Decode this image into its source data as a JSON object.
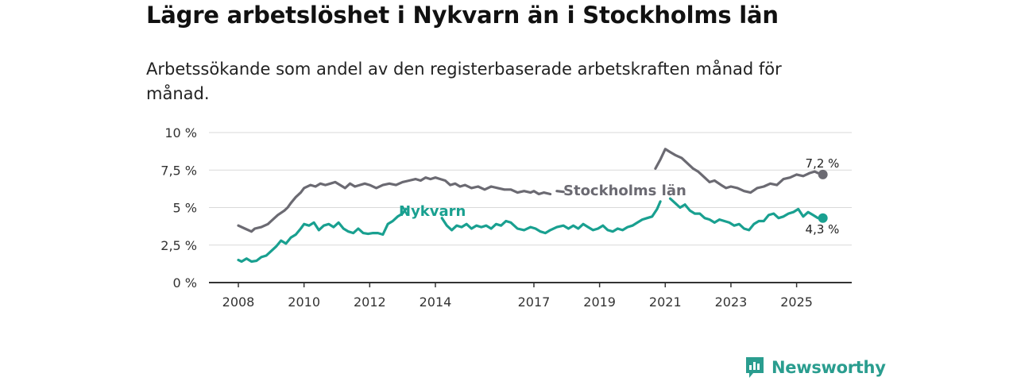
{
  "header": {
    "title": "Lägre arbetslöshet i Nykvarn än i Stockholms län",
    "subtitle": "Arbetssökande som andel av den registerbaserade arbetskraften månad för månad."
  },
  "brand": {
    "name": "Newsworthy",
    "icon": "newsworthy-logo-icon",
    "color": "#2a9d8f"
  },
  "chart_data": {
    "type": "line",
    "title": "Lägre arbetslöshet i Nykvarn än i Stockholms län",
    "subtitle": "Arbetssökande som andel av den registerbaserade arbetskraften månad för månad.",
    "xlabel": "",
    "ylabel": "",
    "xlim": [
      2008.0,
      2026.5
    ],
    "ylim": [
      0,
      10
    ],
    "grid": true,
    "legend": "inline",
    "x_ticks": [
      {
        "value": 2008,
        "label": "2008"
      },
      {
        "value": 2010,
        "label": "2010"
      },
      {
        "value": 2012,
        "label": "2012"
      },
      {
        "value": 2014,
        "label": "2014"
      },
      {
        "value": 2017,
        "label": "2017"
      },
      {
        "value": 2019,
        "label": "2019"
      },
      {
        "value": 2021,
        "label": "2021"
      },
      {
        "value": 2023,
        "label": "2023"
      },
      {
        "value": 2025,
        "label": "2025"
      }
    ],
    "y_ticks": [
      {
        "value": 0,
        "label": "0 %"
      },
      {
        "value": 2.5,
        "label": "2,5 %"
      },
      {
        "value": 5,
        "label": "5 %"
      },
      {
        "value": 7.5,
        "label": "7,5 %"
      },
      {
        "value": 10,
        "label": "10 %"
      }
    ],
    "series": [
      {
        "name": "Stockholms län",
        "color": "#6b6a72",
        "label_x": 2008.0,
        "label_y": 6.0,
        "end_label": "7,2 %",
        "end_value": 7.2,
        "segments": [
          [
            [
              2008.0,
              3.8
            ],
            [
              2008.2,
              3.6
            ],
            [
              2008.4,
              3.4
            ],
            [
              2008.5,
              3.6
            ],
            [
              2008.7,
              3.7
            ],
            [
              2008.9,
              3.9
            ],
            [
              2009.0,
              4.1
            ],
            [
              2009.2,
              4.5
            ],
            [
              2009.4,
              4.8
            ],
            [
              2009.5,
              5.0
            ],
            [
              2009.6,
              5.3
            ],
            [
              2009.75,
              5.7
            ],
            [
              2009.9,
              6.0
            ],
            [
              2010.0,
              6.3
            ],
            [
              2010.2,
              6.5
            ],
            [
              2010.35,
              6.4
            ],
            [
              2010.5,
              6.6
            ],
            [
              2010.65,
              6.5
            ],
            [
              2010.8,
              6.6
            ],
            [
              2010.95,
              6.7
            ],
            [
              2011.1,
              6.5
            ],
            [
              2011.25,
              6.3
            ],
            [
              2011.4,
              6.6
            ],
            [
              2011.55,
              6.4
            ],
            [
              2011.7,
              6.5
            ],
            [
              2011.85,
              6.6
            ],
            [
              2012.0,
              6.5
            ],
            [
              2012.2,
              6.3
            ],
            [
              2012.4,
              6.5
            ],
            [
              2012.6,
              6.6
            ],
            [
              2012.8,
              6.5
            ],
            [
              2013.0,
              6.7
            ],
            [
              2013.2,
              6.8
            ],
            [
              2013.4,
              6.9
            ],
            [
              2013.55,
              6.8
            ],
            [
              2013.7,
              7.0
            ],
            [
              2013.85,
              6.9
            ],
            [
              2014.0,
              7.0
            ],
            [
              2014.15,
              6.9
            ],
            [
              2014.3,
              6.8
            ],
            [
              2014.45,
              6.5
            ],
            [
              2014.6,
              6.6
            ],
            [
              2014.75,
              6.4
            ],
            [
              2014.9,
              6.5
            ],
            [
              2015.1,
              6.3
            ],
            [
              2015.3,
              6.4
            ],
            [
              2015.5,
              6.2
            ],
            [
              2015.7,
              6.4
            ],
            [
              2015.9,
              6.3
            ],
            [
              2016.1,
              6.2
            ],
            [
              2016.3,
              6.2
            ],
            [
              2016.5,
              6.0
            ],
            [
              2016.7,
              6.1
            ],
            [
              2016.9,
              6.0
            ],
            [
              2017.0,
              6.1
            ],
            [
              2017.15,
              5.9
            ],
            [
              2017.3,
              6.0
            ],
            [
              2017.5,
              5.9
            ]
          ],
          [
            [
              2017.7,
              6.1
            ],
            [
              2017.9,
              6.05
            ]
          ],
          [
            [
              2020.7,
              7.6
            ],
            [
              2020.85,
              8.2
            ],
            [
              2021.0,
              8.9
            ],
            [
              2021.15,
              8.7
            ],
            [
              2021.3,
              8.5
            ],
            [
              2021.5,
              8.3
            ],
            [
              2021.7,
              7.9
            ],
            [
              2021.85,
              7.6
            ],
            [
              2022.0,
              7.4
            ],
            [
              2022.2,
              7.0
            ],
            [
              2022.35,
              6.7
            ],
            [
              2022.5,
              6.8
            ],
            [
              2022.7,
              6.5
            ],
            [
              2022.85,
              6.3
            ],
            [
              2023.0,
              6.4
            ],
            [
              2023.2,
              6.3
            ],
            [
              2023.4,
              6.1
            ],
            [
              2023.6,
              6.0
            ],
            [
              2023.8,
              6.3
            ],
            [
              2024.0,
              6.4
            ],
            [
              2024.2,
              6.6
            ],
            [
              2024.4,
              6.5
            ],
            [
              2024.6,
              6.9
            ],
            [
              2024.8,
              7.0
            ],
            [
              2025.0,
              7.2
            ],
            [
              2025.2,
              7.1
            ],
            [
              2025.4,
              7.3
            ],
            [
              2025.55,
              7.4
            ],
            [
              2025.65,
              7.3
            ],
            [
              2025.8,
              7.2
            ]
          ]
        ]
      },
      {
        "name": "Nykvarn",
        "color": "#19a090",
        "label_x": 2012.85,
        "label_y": 4.7,
        "end_label": "4,3 %",
        "end_value": 4.3,
        "segments": [
          [
            [
              2008.0,
              1.5
            ],
            [
              2008.1,
              1.4
            ],
            [
              2008.25,
              1.6
            ],
            [
              2008.4,
              1.4
            ],
            [
              2008.55,
              1.45
            ],
            [
              2008.7,
              1.7
            ],
            [
              2008.85,
              1.8
            ],
            [
              2009.0,
              2.1
            ],
            [
              2009.15,
              2.4
            ],
            [
              2009.3,
              2.8
            ],
            [
              2009.45,
              2.6
            ],
            [
              2009.6,
              3.0
            ],
            [
              2009.75,
              3.2
            ],
            [
              2009.9,
              3.6
            ],
            [
              2010.0,
              3.9
            ],
            [
              2010.15,
              3.8
            ],
            [
              2010.3,
              4.0
            ],
            [
              2010.45,
              3.5
            ],
            [
              2010.6,
              3.8
            ],
            [
              2010.75,
              3.9
            ],
            [
              2010.9,
              3.7
            ],
            [
              2011.05,
              4.0
            ],
            [
              2011.2,
              3.6
            ],
            [
              2011.35,
              3.4
            ],
            [
              2011.5,
              3.3
            ],
            [
              2011.65,
              3.6
            ],
            [
              2011.8,
              3.3
            ],
            [
              2011.95,
              3.25
            ],
            [
              2012.1,
              3.3
            ],
            [
              2012.25,
              3.3
            ],
            [
              2012.4,
              3.2
            ],
            [
              2012.55,
              3.9
            ],
            [
              2012.7,
              4.1
            ],
            [
              2012.85,
              4.4
            ],
            [
              2013.0,
              4.6
            ],
            [
              2013.1,
              4.9
            ]
          ],
          [
            [
              2014.2,
              4.3
            ],
            [
              2014.35,
              3.8
            ],
            [
              2014.5,
              3.5
            ],
            [
              2014.65,
              3.8
            ],
            [
              2014.8,
              3.7
            ],
            [
              2014.95,
              3.9
            ],
            [
              2015.1,
              3.6
            ],
            [
              2015.25,
              3.8
            ],
            [
              2015.4,
              3.7
            ],
            [
              2015.55,
              3.8
            ],
            [
              2015.7,
              3.6
            ],
            [
              2015.85,
              3.9
            ],
            [
              2016.0,
              3.8
            ],
            [
              2016.15,
              4.1
            ],
            [
              2016.3,
              4.0
            ],
            [
              2016.5,
              3.6
            ],
            [
              2016.7,
              3.5
            ],
            [
              2016.9,
              3.7
            ],
            [
              2017.05,
              3.6
            ],
            [
              2017.2,
              3.4
            ],
            [
              2017.35,
              3.3
            ],
            [
              2017.5,
              3.5
            ],
            [
              2017.7,
              3.7
            ],
            [
              2017.9,
              3.8
            ],
            [
              2018.05,
              3.6
            ],
            [
              2018.2,
              3.8
            ],
            [
              2018.35,
              3.6
            ],
            [
              2018.5,
              3.9
            ],
            [
              2018.65,
              3.7
            ],
            [
              2018.8,
              3.5
            ],
            [
              2018.95,
              3.6
            ],
            [
              2019.1,
              3.8
            ],
            [
              2019.25,
              3.5
            ],
            [
              2019.4,
              3.4
            ],
            [
              2019.55,
              3.6
            ],
            [
              2019.7,
              3.5
            ],
            [
              2019.85,
              3.7
            ],
            [
              2020.0,
              3.8
            ],
            [
              2020.15,
              4.0
            ],
            [
              2020.3,
              4.2
            ],
            [
              2020.45,
              4.3
            ],
            [
              2020.6,
              4.4
            ],
            [
              2020.75,
              4.9
            ],
            [
              2020.85,
              5.4
            ]
          ],
          [
            [
              2021.15,
              5.6
            ],
            [
              2021.3,
              5.3
            ],
            [
              2021.45,
              5.0
            ],
            [
              2021.6,
              5.2
            ],
            [
              2021.75,
              4.8
            ],
            [
              2021.9,
              4.6
            ],
            [
              2022.05,
              4.6
            ],
            [
              2022.2,
              4.3
            ],
            [
              2022.35,
              4.2
            ],
            [
              2022.5,
              4.0
            ],
            [
              2022.65,
              4.2
            ],
            [
              2022.8,
              4.1
            ],
            [
              2022.95,
              4.0
            ],
            [
              2023.1,
              3.8
            ],
            [
              2023.25,
              3.9
            ],
            [
              2023.4,
              3.6
            ],
            [
              2023.55,
              3.5
            ],
            [
              2023.7,
              3.9
            ],
            [
              2023.85,
              4.1
            ],
            [
              2024.0,
              4.1
            ],
            [
              2024.15,
              4.5
            ],
            [
              2024.3,
              4.6
            ],
            [
              2024.45,
              4.3
            ],
            [
              2024.6,
              4.4
            ],
            [
              2024.75,
              4.6
            ],
            [
              2024.9,
              4.7
            ],
            [
              2025.05,
              4.9
            ],
            [
              2025.2,
              4.4
            ],
            [
              2025.35,
              4.7
            ],
            [
              2025.5,
              4.5
            ],
            [
              2025.65,
              4.3
            ],
            [
              2025.8,
              4.3
            ]
          ]
        ]
      }
    ]
  }
}
